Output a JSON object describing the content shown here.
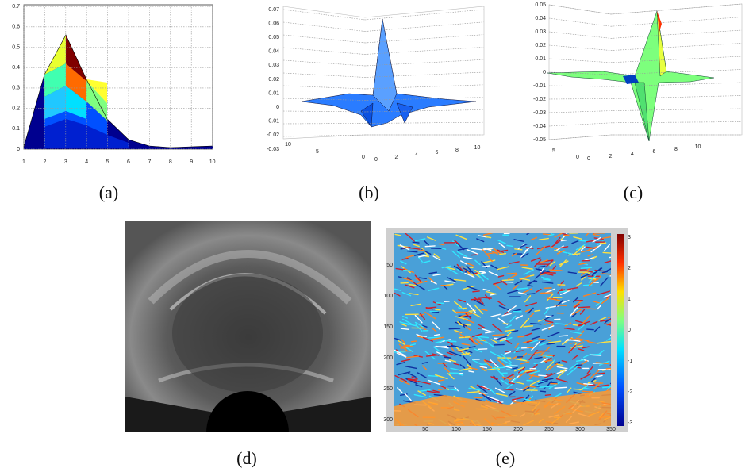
{
  "panels": [
    {
      "label": "(a)",
      "yticks": [
        "0",
        "0.1",
        "0.2",
        "0.3",
        "0.4",
        "0.5",
        "0.6",
        "0.7"
      ],
      "xticks": [
        "1",
        "2",
        "3",
        "4",
        "5",
        "6",
        "7",
        "8",
        "9",
        "10"
      ]
    },
    {
      "label": "(b)",
      "zticks": [
        "0.07",
        "0.06",
        "0.05",
        "0.04",
        "0.03",
        "0.02",
        "0.01",
        "0",
        "-0.01",
        "-0.02",
        "-0.03"
      ],
      "yticks": [
        "10",
        "5",
        "0"
      ],
      "xticks": [
        "0",
        "2",
        "4",
        "6",
        "8",
        "10"
      ]
    },
    {
      "label": "(c)",
      "zticks": [
        "0.05",
        "0.04",
        "0.03",
        "0.02",
        "0.01",
        "0",
        "-0.01",
        "-0.02",
        "-0.03",
        "-0.04",
        "-0.05"
      ],
      "yticks": [
        "5",
        "0"
      ],
      "xticks": [
        "0",
        "2",
        "4",
        "6",
        "8",
        "10"
      ]
    },
    {
      "label": "(d)"
    },
    {
      "label": "(e)",
      "xticks": [
        "50",
        "100",
        "150",
        "200",
        "250",
        "300",
        "350"
      ],
      "yticks": [
        "50",
        "100",
        "150",
        "200",
        "250",
        "300"
      ],
      "colorbar_ticks": [
        "3",
        "2",
        "1",
        "0",
        "-1",
        "-2",
        "-3"
      ]
    }
  ]
}
